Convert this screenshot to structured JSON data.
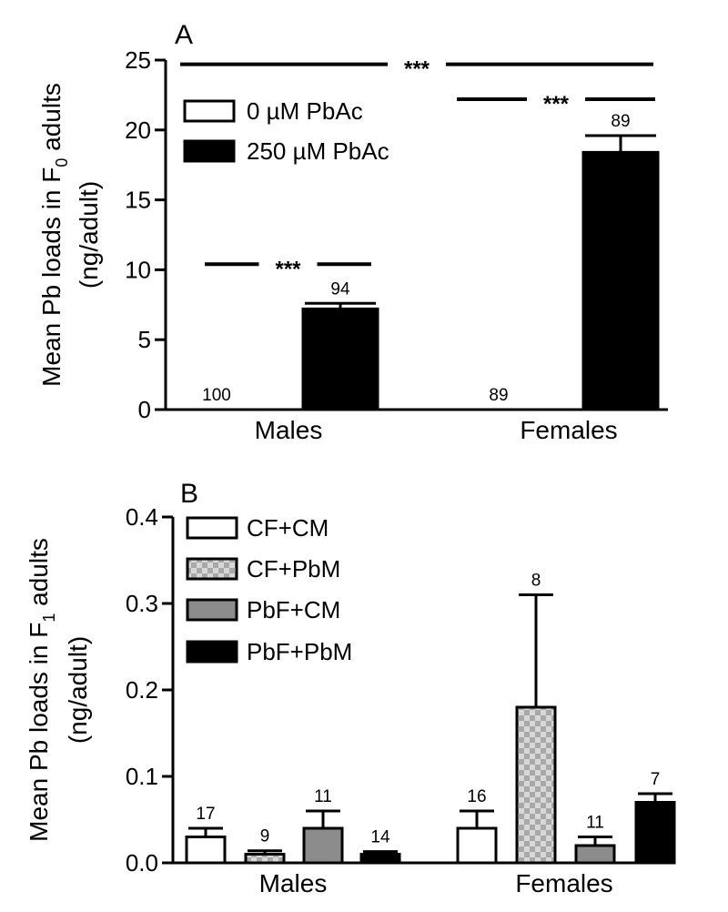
{
  "chart_data": [
    {
      "panel": "A",
      "type": "bar",
      "ylabel_main": "Mean Pb loads in F",
      "ylabel_sub": "0",
      "ylabel_tail": " adults",
      "ylabel_unit": "(ng/adult)",
      "ylim": [
        0,
        25
      ],
      "yticks": [
        0,
        5,
        10,
        15,
        20,
        25
      ],
      "categories": [
        "Males",
        "Females"
      ],
      "series": [
        {
          "name": "0 µM PbAc",
          "color": "#ffffff",
          "values": [
            0,
            0
          ],
          "errors": [
            0,
            0
          ],
          "n": [
            "100",
            "89"
          ]
        },
        {
          "name": "250 µM PbAc",
          "color": "#000000",
          "values": [
            7.2,
            18.4
          ],
          "errors": [
            0.4,
            1.2
          ],
          "n": [
            "94",
            "89"
          ]
        }
      ],
      "significance": [
        {
          "label": "***",
          "y": 24.7,
          "from": "Males/0 µM PbAc",
          "to": "Females/250 µM PbAc"
        },
        {
          "label": "***",
          "y": 22.2,
          "from": "Females/0 µM PbAc",
          "to": "Females/250 µM PbAc"
        },
        {
          "label": "***",
          "y": 10.4,
          "from": "Males/0 µM PbAc",
          "to": "Males/250 µM PbAc"
        }
      ]
    },
    {
      "panel": "B",
      "type": "bar",
      "ylabel_main": "Mean Pb loads in F",
      "ylabel_sub": "1",
      "ylabel_tail": " adults",
      "ylabel_unit": "(ng/adult)",
      "ylim": [
        0,
        0.4
      ],
      "yticks": [
        0.0,
        0.1,
        0.2,
        0.3,
        0.4
      ],
      "ytick_labels": [
        "0.0",
        "0.1",
        "0.2",
        "0.3",
        "0.4"
      ],
      "categories": [
        "Males",
        "Females"
      ],
      "series": [
        {
          "name": "CF+CM",
          "color": "#ffffff",
          "pattern": "none",
          "values": [
            0.03,
            0.04
          ],
          "errors": [
            0.01,
            0.02
          ],
          "n": [
            "17",
            "16"
          ]
        },
        {
          "name": "CF+PbM",
          "color": "#c0c0c0",
          "pattern": "checker",
          "values": [
            0.01,
            0.18
          ],
          "errors": [
            0.004,
            0.13
          ],
          "n": [
            "9",
            "8"
          ]
        },
        {
          "name": "PbF+CM",
          "color": "#8c8c8c",
          "pattern": "none",
          "values": [
            0.04,
            0.02
          ],
          "errors": [
            0.02,
            0.01
          ],
          "n": [
            "11",
            "11"
          ]
        },
        {
          "name": "PbF+PbM",
          "color": "#000000",
          "pattern": "none",
          "values": [
            0.01,
            0.07
          ],
          "errors": [
            0.003,
            0.01
          ],
          "n": [
            "14",
            "7"
          ]
        }
      ]
    }
  ]
}
